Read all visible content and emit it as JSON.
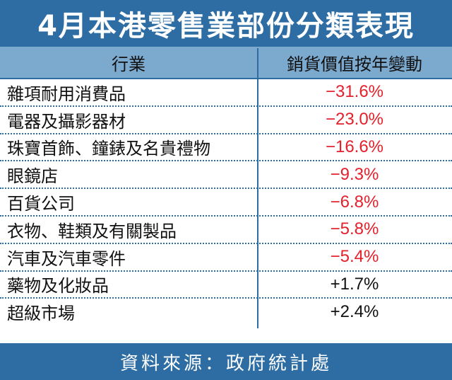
{
  "chart_data": {
    "type": "table",
    "title": "4月本港零售業部份分類表現",
    "columns": [
      "行業",
      "銷貨價值按年變動"
    ],
    "categories": [
      "雜項耐用消費品",
      "電器及攝影器材",
      "珠寶首飾、鐘錶及名貴禮物",
      "眼鏡店",
      "百貨公司",
      "衣物、鞋類及有關製品",
      "汽車及汽車零件",
      "藥物及化妝品",
      "超級市場"
    ],
    "values": [
      -31.6,
      -23.0,
      -16.6,
      -9.3,
      -6.8,
      -5.8,
      -5.4,
      1.7,
      2.4
    ],
    "value_labels": [
      "−31.6%",
      "−23.0%",
      "−16.6%",
      "−9.3%",
      "−6.8%",
      "−5.8%",
      "−5.4%",
      "+1.7%",
      "+2.4%"
    ],
    "source": "資料來源：政府統計處"
  },
  "colors": {
    "banner": "#2d6da3",
    "header": "#7ca9ce",
    "negative": "#e3202b",
    "positive": "#111111"
  }
}
